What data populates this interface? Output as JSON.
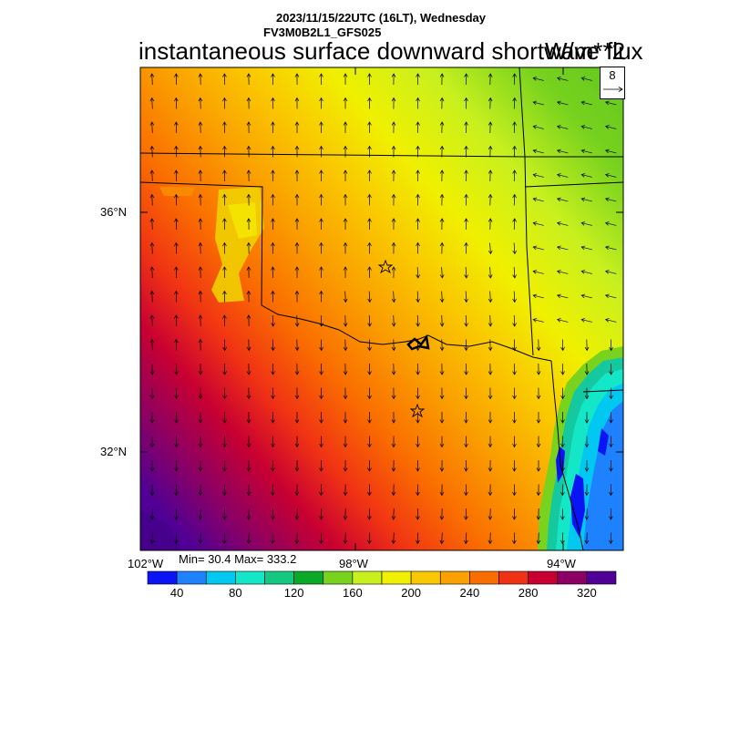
{
  "header": {
    "datetime": "2023/11/15/22UTC (16LT), Wednesday",
    "model": "FV3M0B2L1_GFS025",
    "title": "instantaneous surface downward shortwave flux",
    "units": "W/m**2"
  },
  "map": {
    "lat_labels": [
      "36°N",
      "32°N"
    ],
    "lon_labels": [
      "102°W",
      "98°W",
      "94°W"
    ],
    "vector_reference": "8",
    "markers": [
      "star-icon",
      "star-icon"
    ]
  },
  "stats": {
    "text": "Min= 30.4 Max= 333.2"
  },
  "colorbar": {
    "colors": [
      "#0a14f5",
      "#1e82ff",
      "#00c8f0",
      "#14e6c8",
      "#14c882",
      "#0aaa28",
      "#78d21e",
      "#c8f01e",
      "#f0f000",
      "#fac800",
      "#faa000",
      "#fa6e00",
      "#f03214",
      "#c80032",
      "#8c0064",
      "#500096"
    ],
    "labels": [
      "40",
      "80",
      "120",
      "160",
      "200",
      "240",
      "280",
      "320"
    ]
  }
}
